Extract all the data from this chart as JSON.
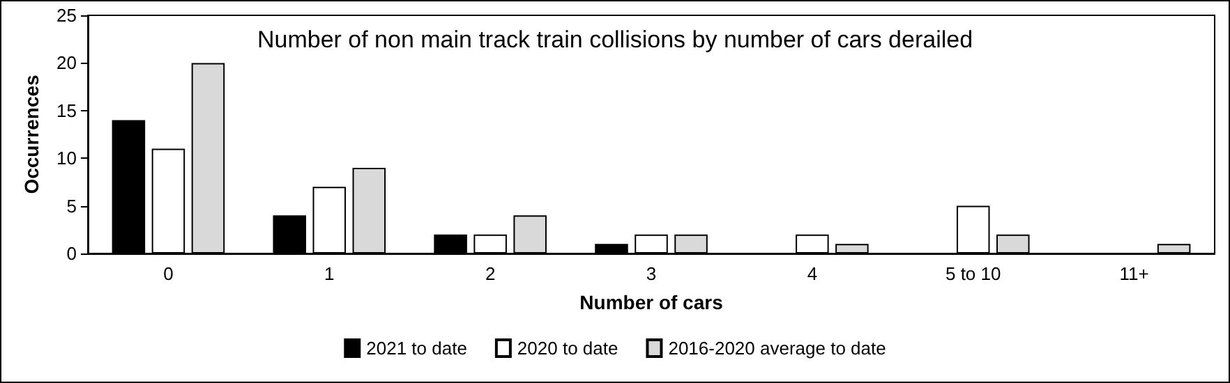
{
  "chart_data": {
    "type": "bar",
    "title": "Number of non main track train collisions by number of cars derailed",
    "xlabel": "Number of cars",
    "ylabel": "Occurrences",
    "categories": [
      "0",
      "1",
      "2",
      "3",
      "4",
      "5 to 10",
      "11+"
    ],
    "series": [
      {
        "name": "2021 to date",
        "color": "#000000",
        "values": [
          14,
          4,
          2,
          1,
          0,
          0,
          0
        ]
      },
      {
        "name": "2020 to date",
        "color": "#ffffff",
        "values": [
          11,
          7,
          2,
          2,
          2,
          5,
          0
        ]
      },
      {
        "name": "2016-2020 average to date",
        "color": "#d9d9d9",
        "values": [
          20,
          9,
          4,
          2,
          1,
          2,
          1
        ]
      }
    ],
    "ylim": [
      0,
      25
    ],
    "yticks": [
      0,
      5,
      10,
      15,
      20,
      25
    ],
    "grid": false,
    "legend": "bottom"
  }
}
